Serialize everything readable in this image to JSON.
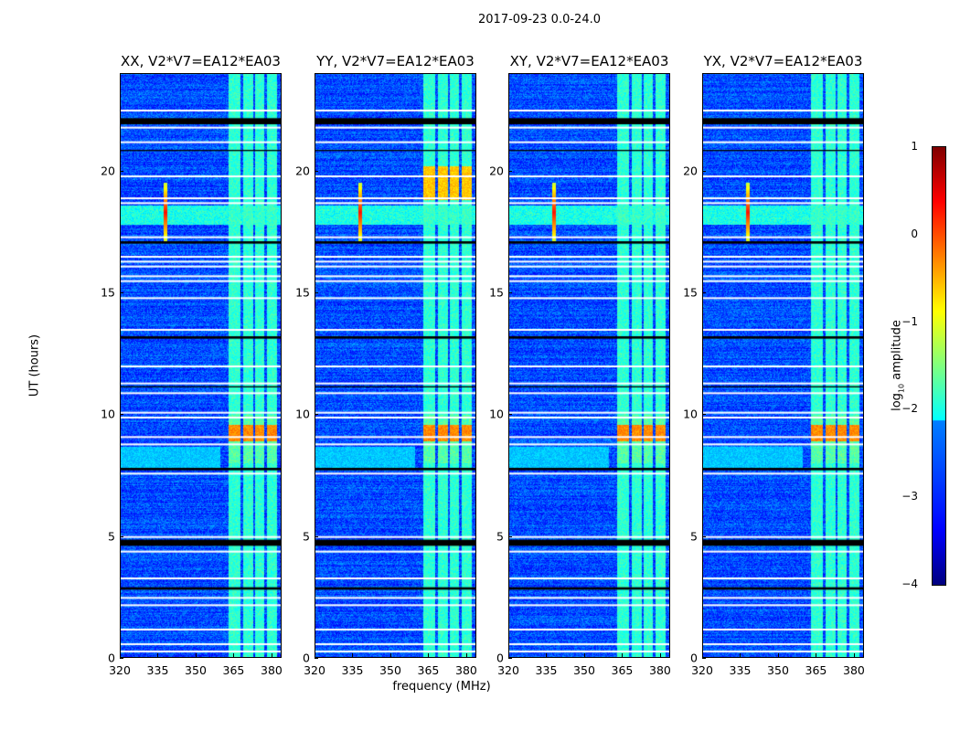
{
  "chart_data": {
    "type": "heatmap",
    "suptitle": "2017-09-23 0.0-24.0",
    "xlabel": "frequency (MHz)",
    "ylabel": "UT (hours)",
    "xlim": [
      320,
      384
    ],
    "ylim": [
      0,
      24
    ],
    "xticks": [
      "320",
      "335",
      "350",
      "365",
      "380"
    ],
    "yticks": [
      "0",
      "5",
      "10",
      "15",
      "20"
    ],
    "panels": [
      {
        "title": "XX, V2*V7=EA12*EA03",
        "yy_boost": false
      },
      {
        "title": "YY, V2*V7=EA12*EA03",
        "yy_boost": true
      },
      {
        "title": "XY, V2*V7=EA12*EA03",
        "yy_boost": false
      },
      {
        "title": "YX, V2*V7=EA12*EA03",
        "yy_boost": false
      }
    ],
    "background_level": -3.0,
    "rfi_bands_mhz": [
      [
        363,
        367.5
      ],
      [
        368.5,
        372.5
      ],
      [
        373.5,
        377
      ],
      [
        378,
        382
      ]
    ],
    "rfi_band_level": -1.7,
    "bright_interval_hours": [
      8.9,
      9.6
    ],
    "bright_level": -0.3,
    "broadband_rfi_hours": [
      17.8,
      18.6
    ],
    "spike": {
      "freq_mhz": 338,
      "hour": 18.3,
      "level": 0.3
    },
    "flagged_white_hours": [
      0.3,
      0.6,
      1.2,
      2.2,
      2.5,
      3.3,
      4.4,
      5.0,
      7.6,
      8.8,
      9.1,
      9.9,
      10.1,
      10.9,
      11.3,
      12.0,
      13.5,
      14.8,
      15.5,
      15.7,
      16.1,
      16.3,
      16.5,
      17.3,
      18.7,
      18.9,
      19.8,
      21.2,
      21.8,
      22.5
    ],
    "flagged_black_hours": [
      [
        4.6,
        4.85
      ],
      [
        2.8,
        2.9
      ],
      [
        7.7,
        7.8
      ],
      [
        13.1,
        13.2
      ],
      [
        21.9,
        22.15
      ],
      [
        20.8,
        20.85
      ],
      [
        17.0,
        17.1
      ],
      [
        11.1,
        11.15
      ]
    ],
    "colorbar": {
      "label": "log10 amplitude",
      "label_main": "log",
      "label_sub": "10",
      "label_rest": " amplitude",
      "range": [
        -4,
        1
      ],
      "ticks": [
        "1",
        "0",
        "−1",
        "−2",
        "−3",
        "−4"
      ]
    }
  }
}
